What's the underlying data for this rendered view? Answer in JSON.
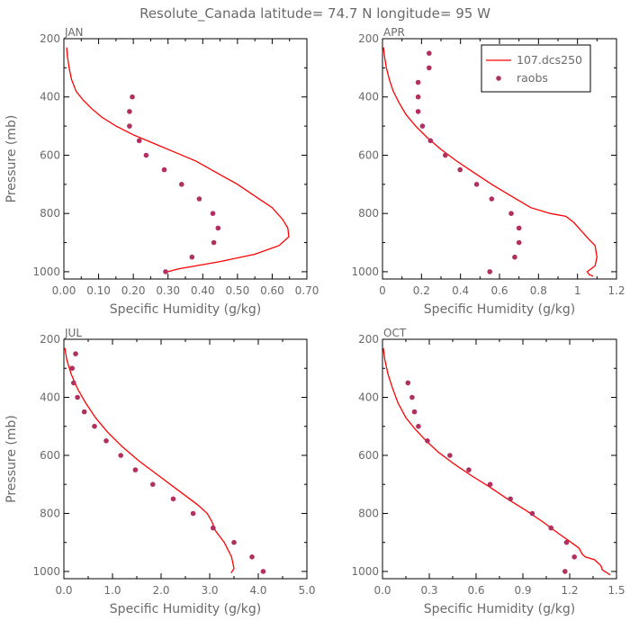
{
  "figure": {
    "title": "Resolute_Canada  latitude= 74.7 N longitude= 95 W"
  },
  "colors": {
    "model": "#ff0000",
    "obs": "#b03060",
    "axis": "#000000",
    "text": "#6a6a6a"
  },
  "legend": {
    "model_label": "107.dcs250",
    "obs_label": "raobs",
    "placement": "top-right of APR panel"
  },
  "chart_data": [
    {
      "type": "line+scatter",
      "panel": "JAN",
      "xlabel": "Specific Humidity (g/kg)",
      "ylabel": "Pressure (mb)",
      "xlim": [
        0,
        0.7
      ],
      "ylim": [
        1025,
        200
      ],
      "xticks": [
        "0.00",
        "0.10",
        "0.20",
        "0.30",
        "0.40",
        "0.50",
        "0.60",
        "0.70"
      ],
      "yticks": [
        "200",
        "400",
        "600",
        "800",
        "1000"
      ],
      "series": [
        {
          "name": "107.dcs250",
          "style": "line",
          "x": [
            0.008,
            0.01,
            0.015,
            0.022,
            0.035,
            0.055,
            0.08,
            0.11,
            0.15,
            0.2,
            0.26,
            0.32,
            0.38,
            0.44,
            0.5,
            0.55,
            0.6,
            0.63,
            0.645,
            0.648,
            0.62,
            0.55,
            0.45,
            0.38,
            0.33,
            0.3,
            0.29
          ],
          "y": [
            230,
            260,
            300,
            340,
            380,
            410,
            440,
            470,
            500,
            530,
            560,
            590,
            620,
            660,
            700,
            740,
            780,
            820,
            850,
            880,
            910,
            940,
            965,
            980,
            990,
            1000,
            1005
          ]
        },
        {
          "name": "raobs",
          "style": "points",
          "x": [
            0.197,
            0.189,
            0.189,
            0.217,
            0.237,
            0.289,
            0.339,
            0.39,
            0.429,
            0.444,
            0.432,
            0.369,
            0.293
          ],
          "y": [
            400,
            450,
            500,
            550,
            600,
            650,
            700,
            750,
            800,
            850,
            900,
            950,
            1000
          ]
        }
      ]
    },
    {
      "type": "line+scatter",
      "panel": "APR",
      "xlabel": "Specific Humidity (g/kg)",
      "ylabel": "",
      "xlim": [
        0,
        1.2
      ],
      "ylim": [
        1025,
        200
      ],
      "xticks": [
        "0",
        "0.2",
        "0.4",
        "0.6",
        "0.8",
        "1",
        "1.2"
      ],
      "yticks": [
        "200",
        "400",
        "600",
        "800",
        "1000"
      ],
      "series": [
        {
          "name": "107.dcs250",
          "style": "line",
          "x": [
            0.005,
            0.01,
            0.02,
            0.035,
            0.055,
            0.085,
            0.12,
            0.17,
            0.23,
            0.3,
            0.38,
            0.47,
            0.56,
            0.66,
            0.76,
            0.86,
            0.94,
            0.98,
            1.02,
            1.06,
            1.09,
            1.1,
            1.09,
            1.05,
            1.06,
            1.08
          ],
          "y": [
            230,
            260,
            300,
            340,
            380,
            420,
            460,
            500,
            540,
            580,
            620,
            660,
            700,
            740,
            780,
            800,
            810,
            830,
            860,
            890,
            910,
            950,
            980,
            1000,
            1010,
            1015
          ]
        },
        {
          "name": "raobs",
          "style": "points",
          "x": [
            0.239,
            0.239,
            0.183,
            0.183,
            0.183,
            0.205,
            0.246,
            0.322,
            0.398,
            0.483,
            0.56,
            0.66,
            0.7,
            0.7,
            0.678,
            0.55
          ],
          "y": [
            250,
            300,
            350,
            400,
            450,
            500,
            550,
            600,
            650,
            700,
            750,
            800,
            850,
            900,
            950,
            1000
          ]
        }
      ]
    },
    {
      "type": "line+scatter",
      "panel": "JUL",
      "xlabel": "Specific Humidity (g/kg)",
      "ylabel": "Pressure (mb)",
      "xlim": [
        0,
        5.0
      ],
      "ylim": [
        1025,
        200
      ],
      "xticks": [
        "0.0",
        "1.0",
        "2.0",
        "3.0",
        "4.0",
        "5.0"
      ],
      "yticks": [
        "200",
        "400",
        "600",
        "800",
        "1000"
      ],
      "series": [
        {
          "name": "107.dcs250",
          "style": "line",
          "x": [
            0.02,
            0.06,
            0.15,
            0.28,
            0.45,
            0.65,
            0.9,
            1.2,
            1.55,
            1.95,
            2.35,
            2.75,
            2.95,
            3.05,
            3.12,
            3.3,
            3.45,
            3.5,
            3.44
          ],
          "y": [
            230,
            270,
            320,
            370,
            420,
            470,
            520,
            570,
            620,
            670,
            720,
            770,
            800,
            830,
            860,
            900,
            950,
            990,
            1005
          ]
        },
        {
          "name": "raobs",
          "style": "points",
          "x": [
            0.24,
            0.17,
            0.2,
            0.28,
            0.42,
            0.63,
            0.87,
            1.17,
            1.47,
            1.83,
            2.25,
            2.66,
            3.07,
            3.5,
            3.87,
            4.1
          ],
          "y": [
            250,
            300,
            350,
            400,
            450,
            500,
            550,
            600,
            650,
            700,
            750,
            800,
            850,
            900,
            950,
            1000
          ]
        }
      ]
    },
    {
      "type": "line+scatter",
      "panel": "OCT",
      "xlabel": "Specific Humidity (g/kg)",
      "ylabel": "",
      "xlim": [
        0,
        1.5
      ],
      "ylim": [
        1025,
        200
      ],
      "xticks": [
        "0.0",
        "0.3",
        "0.6",
        "0.9",
        "1.2",
        "1.5"
      ],
      "yticks": [
        "200",
        "400",
        "600",
        "800",
        "1000"
      ],
      "series": [
        {
          "name": "107.dcs250",
          "style": "line",
          "x": [
            0.005,
            0.015,
            0.035,
            0.065,
            0.1,
            0.15,
            0.21,
            0.28,
            0.36,
            0.46,
            0.57,
            0.69,
            0.8,
            0.92,
            1.03,
            1.13,
            1.21,
            1.26,
            1.28,
            1.3,
            1.36,
            1.4,
            1.41,
            1.44,
            1.46
          ],
          "y": [
            230,
            270,
            320,
            370,
            420,
            470,
            510,
            550,
            590,
            630,
            670,
            710,
            750,
            790,
            830,
            870,
            900,
            920,
            940,
            950,
            960,
            980,
            995,
            1005,
            1012
          ]
        },
        {
          "name": "raobs",
          "style": "points",
          "x": [
            0.163,
            0.19,
            0.205,
            0.23,
            0.288,
            0.432,
            0.553,
            0.69,
            0.82,
            0.96,
            1.08,
            1.18,
            1.23,
            1.17
          ],
          "y": [
            350,
            400,
            450,
            500,
            550,
            600,
            650,
            700,
            750,
            800,
            850,
            900,
            950,
            1000
          ]
        }
      ]
    }
  ]
}
